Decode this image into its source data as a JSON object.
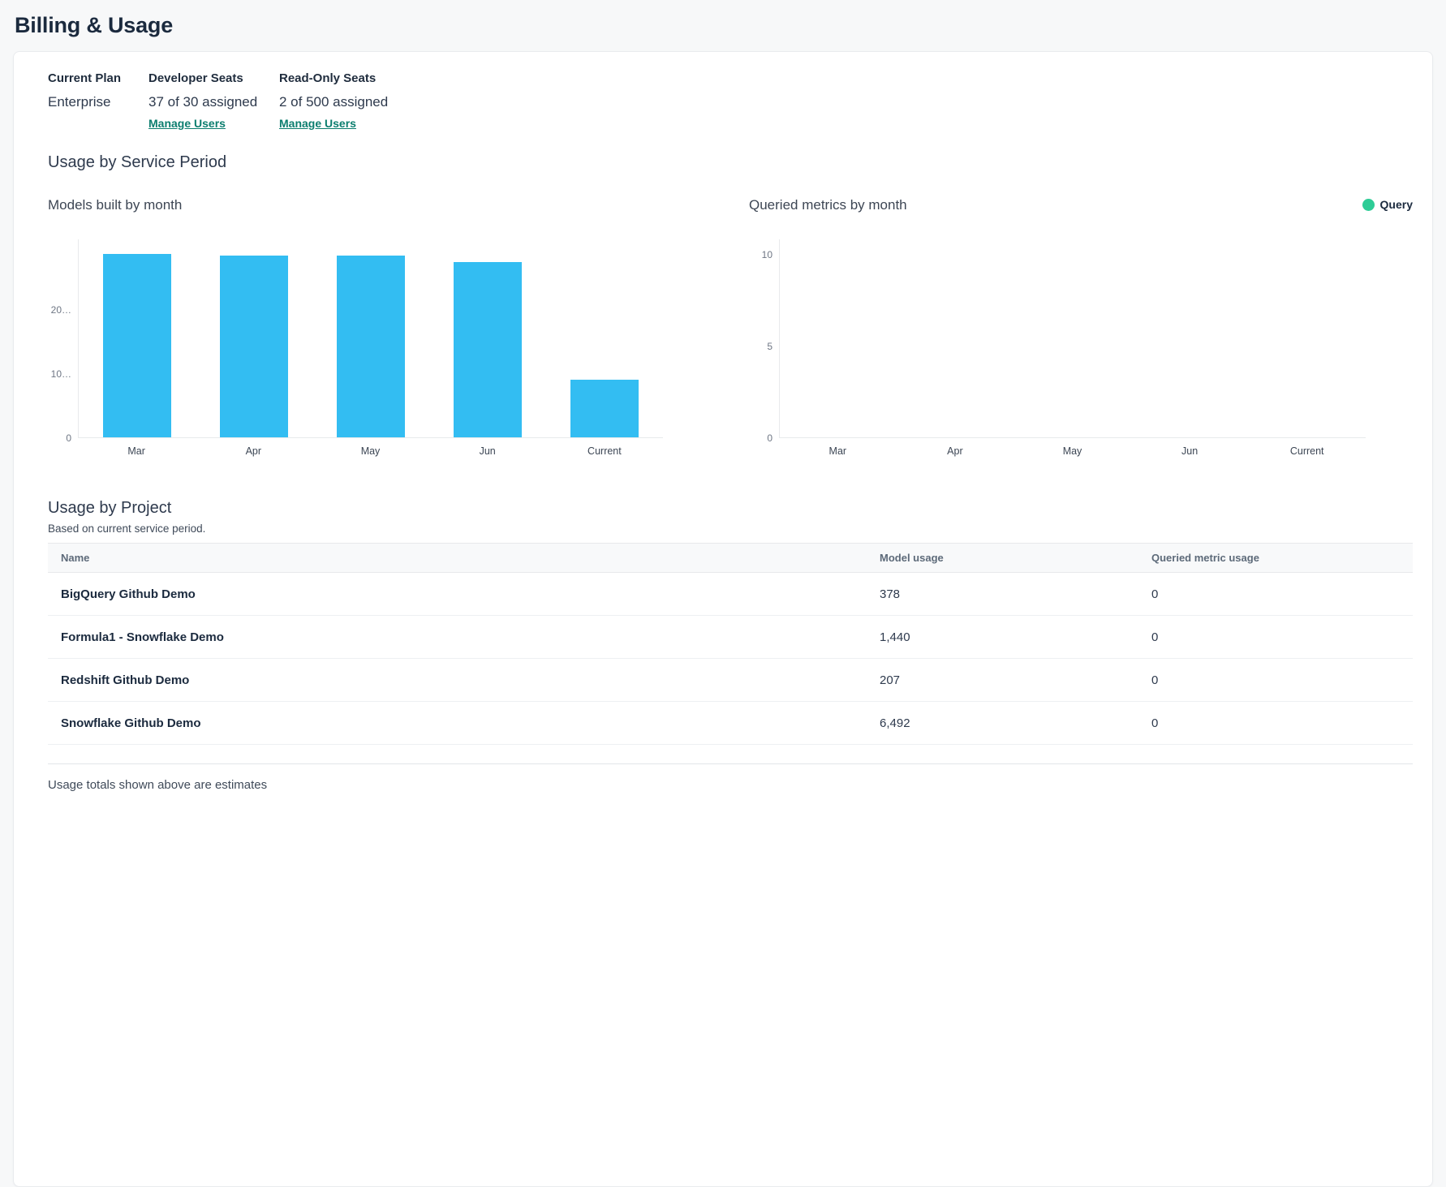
{
  "page": {
    "title": "Billing & Usage"
  },
  "plan": {
    "columns": [
      {
        "label": "Current Plan",
        "value": "Enterprise"
      },
      {
        "label": "Developer Seats",
        "value": "37 of 30 assigned",
        "link": "Manage Users"
      },
      {
        "label": "Read-Only Seats",
        "value": "2 of 500 assigned",
        "link": "Manage Users"
      }
    ],
    "link_color": "#0c7e6f"
  },
  "usage_section": {
    "heading": "Usage by Service Period"
  },
  "chart_data": [
    {
      "type": "bar",
      "title": "Models built by month",
      "categories": [
        "Mar",
        "Apr",
        "May",
        "Jun",
        "Current"
      ],
      "values": [
        28600,
        28400,
        28400,
        27300,
        9000
      ],
      "y_axis": {
        "max": 31000,
        "ticks": [
          {
            "value": 0,
            "label": "0"
          },
          {
            "value": 10000,
            "label": "10…"
          },
          {
            "value": 20000,
            "label": "20…"
          }
        ]
      },
      "bar_color": "#33bdf2",
      "grid": false,
      "legend": null
    },
    {
      "type": "bar",
      "title": "Queried metrics by month",
      "categories": [
        "Mar",
        "Apr",
        "May",
        "Jun",
        "Current"
      ],
      "values": [
        0,
        0,
        0,
        0,
        0
      ],
      "y_axis": {
        "max": 10.85,
        "ticks": [
          {
            "value": 0,
            "label": "0"
          },
          {
            "value": 5,
            "label": "5"
          },
          {
            "value": 10,
            "label": "10"
          }
        ]
      },
      "bar_color": "#2ecc96",
      "grid": false,
      "legend": {
        "label": "Query",
        "color": "#2ecc96",
        "position": "top-right"
      }
    }
  ],
  "project_table": {
    "heading": "Usage by Project",
    "subheading": "Based on current service period.",
    "columns": [
      "Name",
      "Model usage",
      "Queried metric usage"
    ],
    "rows": [
      {
        "name": "BigQuery Github Demo",
        "model_usage": "378",
        "queried_metric_usage": "0"
      },
      {
        "name": "Formula1 - Snowflake Demo",
        "model_usage": "1,440",
        "queried_metric_usage": "0"
      },
      {
        "name": "Redshift Github Demo",
        "model_usage": "207",
        "queried_metric_usage": "0"
      },
      {
        "name": "Snowflake Github Demo",
        "model_usage": "6,492",
        "queried_metric_usage": "0"
      }
    ]
  },
  "footer": {
    "note": "Usage totals shown above are estimates"
  }
}
